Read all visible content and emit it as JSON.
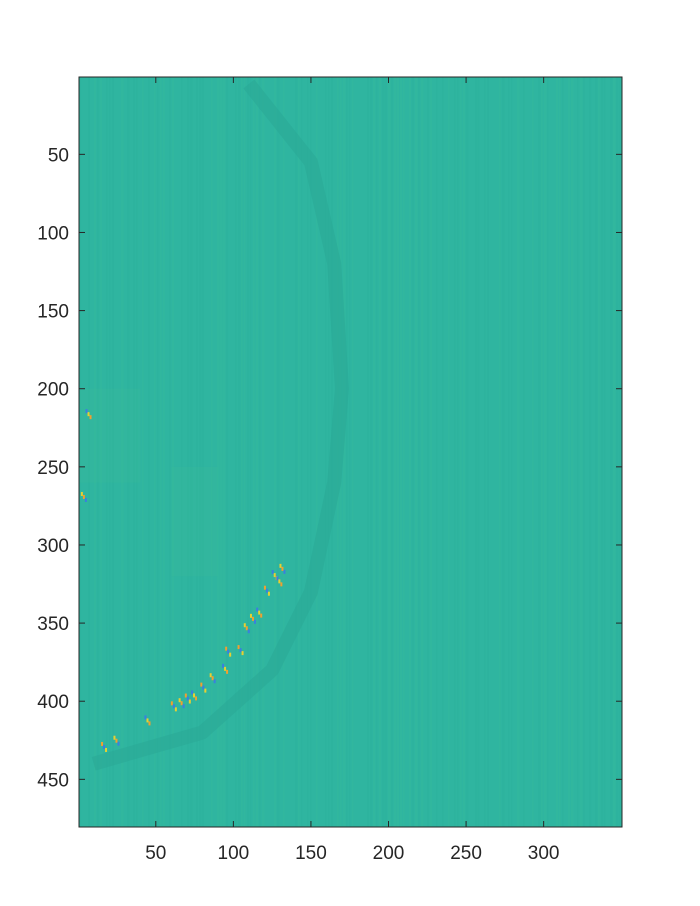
{
  "chart_data": {
    "type": "heatmap",
    "title": "",
    "xlabel": "",
    "ylabel": "",
    "xlim": [
      0.5,
      350.5
    ],
    "ylim": [
      0.5,
      480.5
    ],
    "y_reversed": true,
    "xticks": [
      50,
      100,
      150,
      200,
      250,
      300
    ],
    "yticks": [
      50,
      100,
      150,
      200,
      250,
      300,
      350,
      400,
      450
    ],
    "grid": false,
    "legend": "none",
    "colormap": "parula",
    "background_value_color": "#2fb5a0",
    "colors": {
      "background": "#2fb5a0",
      "faint_arc": "#2aa796",
      "light_band": "#3bbd98",
      "speck_blue": "#3a7fe0",
      "speck_yellow": "#e8d030",
      "speck_orange": "#f0a030"
    },
    "features": {
      "faint_arc_points": [
        [
          110,
          5
        ],
        [
          150,
          55
        ],
        [
          165,
          120
        ],
        [
          170,
          200
        ],
        [
          165,
          260
        ],
        [
          150,
          330
        ],
        [
          125,
          380
        ],
        [
          80,
          420
        ],
        [
          10,
          440
        ]
      ],
      "edge_speckles": [
        [
          126,
          318
        ],
        [
          131,
          314
        ],
        [
          121,
          328
        ],
        [
          116,
          342
        ],
        [
          108,
          352
        ],
        [
          104,
          366
        ],
        [
          94,
          378
        ],
        [
          86,
          384
        ],
        [
          80,
          390
        ],
        [
          74,
          395
        ],
        [
          66,
          400
        ],
        [
          61,
          402
        ],
        [
          44,
          411
        ],
        [
          24,
          424
        ],
        [
          16,
          428
        ],
        [
          6,
          215
        ],
        [
          3,
          268
        ],
        [
          96,
          367
        ],
        [
          129,
          322
        ],
        [
          112,
          346
        ],
        [
          70,
          397
        ]
      ]
    }
  }
}
